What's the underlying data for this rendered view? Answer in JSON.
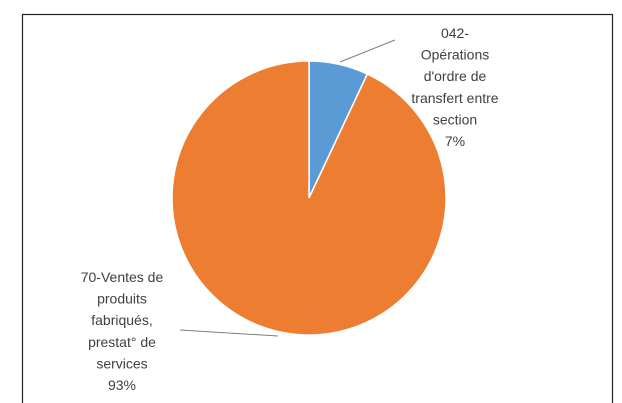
{
  "chart_data": {
    "type": "pie",
    "categories": [
      "042-\nOpérations\nd'ordre de\ntransfert entre\nsection",
      "70-Ventes de\nproduits\nfabriqués,\nprestat° de\nservices"
    ],
    "values": [
      7,
      93
    ],
    "value_labels": [
      "7%",
      "93%"
    ],
    "colors": [
      "#5b9bd5",
      "#ed7d31"
    ]
  }
}
